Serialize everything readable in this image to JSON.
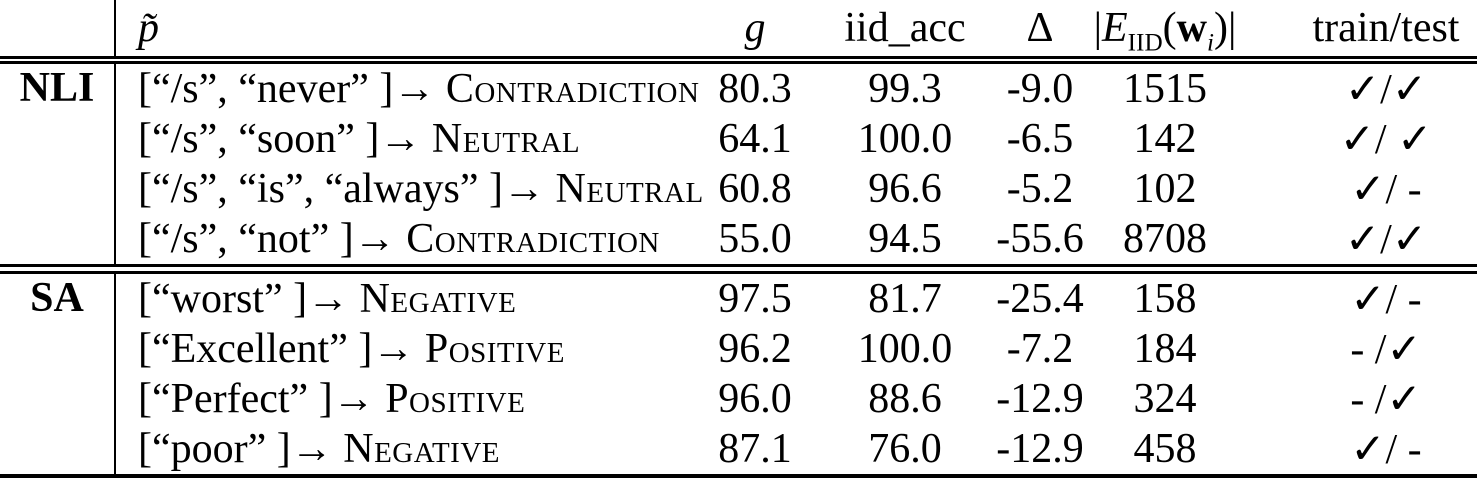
{
  "table": {
    "headers": {
      "group": "",
      "pattern": "p̃",
      "g": "g",
      "iid_acc": "iid_acc",
      "delta": "Δ",
      "e_col": {
        "bar_open": "|",
        "E": "E",
        "E_sub": "IID",
        "paren_open": "(",
        "w": "w",
        "w_sub": "i",
        "paren_close": ")",
        "bar_close": "|"
      },
      "train_test": "train/test"
    },
    "sections": [
      {
        "group": "NLI",
        "rows": [
          {
            "pattern": "[“/s”, “never” ]→ ",
            "label": "Contradiction",
            "g": "80.3",
            "iid_acc": "99.3",
            "delta": "-9.0",
            "e_abs": "1515",
            "train_test": "✓/✓"
          },
          {
            "pattern": "[“/s”, “soon” ]→ ",
            "label": "Neutral",
            "g": "64.1",
            "iid_acc": "100.0",
            "delta": "-6.5",
            "e_abs": "142",
            "train_test": "✓/ ✓"
          },
          {
            "pattern": "[“/s”, “is”, “always” ]→ ",
            "label": "Neutral",
            "g": "60.8",
            "iid_acc": "96.6",
            "delta": "-5.2",
            "e_abs": "102",
            "train_test": "✓/ -"
          },
          {
            "pattern": "[“/s”, “not” ]→ ",
            "label": "Contradiction",
            "g": "55.0",
            "iid_acc": "94.5",
            "delta": "-55.6",
            "e_abs": "8708",
            "train_test": "✓/✓"
          }
        ]
      },
      {
        "group": "SA",
        "rows": [
          {
            "pattern": "[“worst” ]→ ",
            "label": "Negative",
            "g": "97.5",
            "iid_acc": "81.7",
            "delta": "-25.4",
            "e_abs": "158",
            "train_test": "✓/ -"
          },
          {
            "pattern": "[“Excellent” ]→ ",
            "label": "Positive",
            "g": "96.2",
            "iid_acc": "100.0",
            "delta": "-7.2",
            "e_abs": "184",
            "train_test": "- /✓"
          },
          {
            "pattern": "[“Perfect” ]→ ",
            "label": "Positive",
            "g": "96.0",
            "iid_acc": "88.6",
            "delta": "-12.9",
            "e_abs": "324",
            "train_test": "- /✓"
          },
          {
            "pattern": "[“poor” ]→ ",
            "label": "Negative",
            "g": "87.1",
            "iid_acc": "76.0",
            "delta": "-12.9",
            "e_abs": "458",
            "train_test": "✓/ -"
          }
        ]
      }
    ],
    "colors": {
      "text": "#000000",
      "background": "#ffffff",
      "rule": "#000000"
    }
  }
}
